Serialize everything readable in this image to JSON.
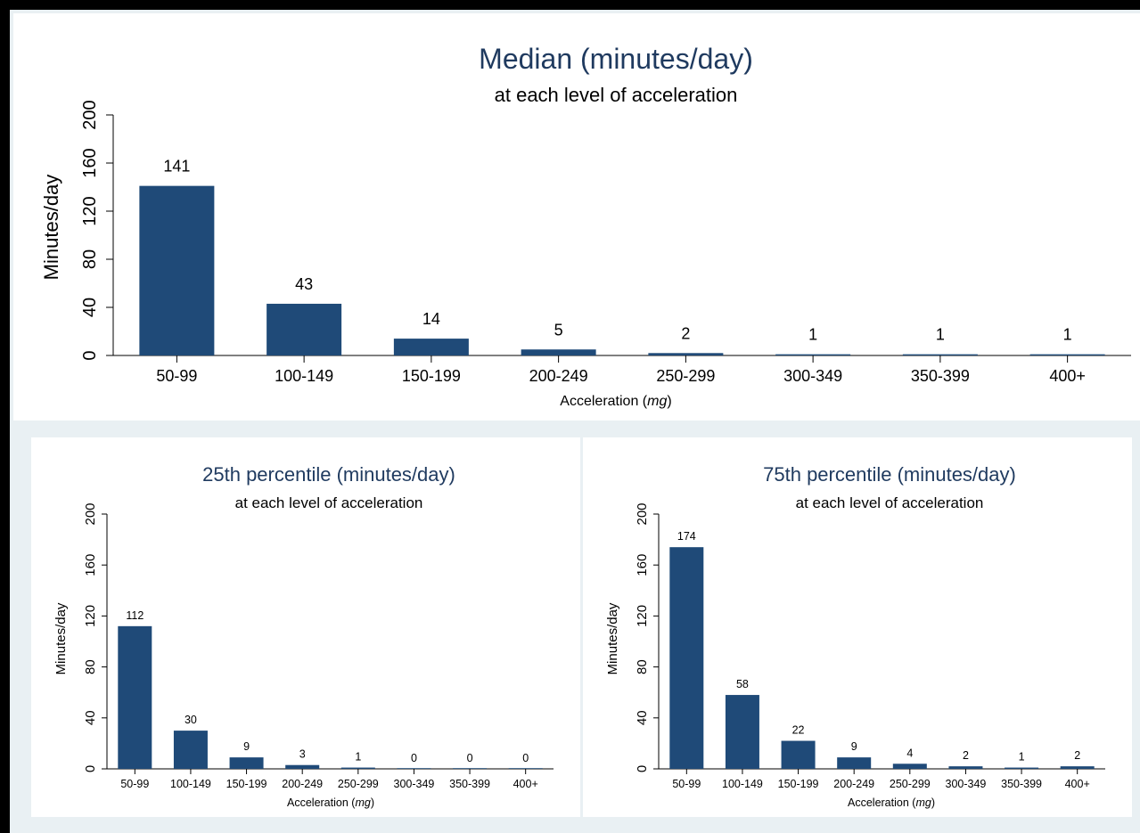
{
  "colors": {
    "bar": "#1f4a78",
    "title": "#1f3a5f",
    "background": "#e9f0f3",
    "frame": "#000000"
  },
  "chart_data": [
    {
      "type": "bar",
      "title": "Median (minutes/day)",
      "subtitle": "at each level of acceleration",
      "xlabel_text": "Acceleration (",
      "xlabel_unit": "mg",
      "xlabel_close": ")",
      "ylabel": "Minutes/day",
      "categories": [
        "50-99",
        "100-149",
        "150-199",
        "200-249",
        "250-299",
        "300-349",
        "350-399",
        "400+"
      ],
      "values": [
        141,
        43,
        14,
        5,
        2,
        1,
        1,
        1
      ],
      "yticks": [
        0,
        40,
        80,
        120,
        160,
        200
      ],
      "ylim": [
        0,
        200
      ],
      "grid": false
    },
    {
      "type": "bar",
      "title": "25th percentile (minutes/day)",
      "subtitle": "at each level of acceleration",
      "xlabel_text": "Acceleration (",
      "xlabel_unit": "mg",
      "xlabel_close": ")",
      "ylabel": "Minutes/day",
      "categories": [
        "50-99",
        "100-149",
        "150-199",
        "200-249",
        "250-299",
        "300-349",
        "350-399",
        "400+"
      ],
      "values": [
        112,
        30,
        9,
        3,
        1,
        0,
        0,
        0
      ],
      "yticks": [
        0,
        40,
        80,
        120,
        160,
        200
      ],
      "ylim": [
        0,
        200
      ],
      "grid": false
    },
    {
      "type": "bar",
      "title": "75th percentile (minutes/day)",
      "subtitle": "at each level of acceleration",
      "xlabel_text": "Acceleration (",
      "xlabel_unit": "mg",
      "xlabel_close": ")",
      "ylabel": "Minutes/day",
      "categories": [
        "50-99",
        "100-149",
        "150-199",
        "200-249",
        "250-299",
        "300-349",
        "350-399",
        "400+"
      ],
      "values": [
        174,
        58,
        22,
        9,
        4,
        2,
        1,
        2
      ],
      "yticks": [
        0,
        40,
        80,
        120,
        160,
        200
      ],
      "ylim": [
        0,
        200
      ],
      "grid": false
    }
  ]
}
